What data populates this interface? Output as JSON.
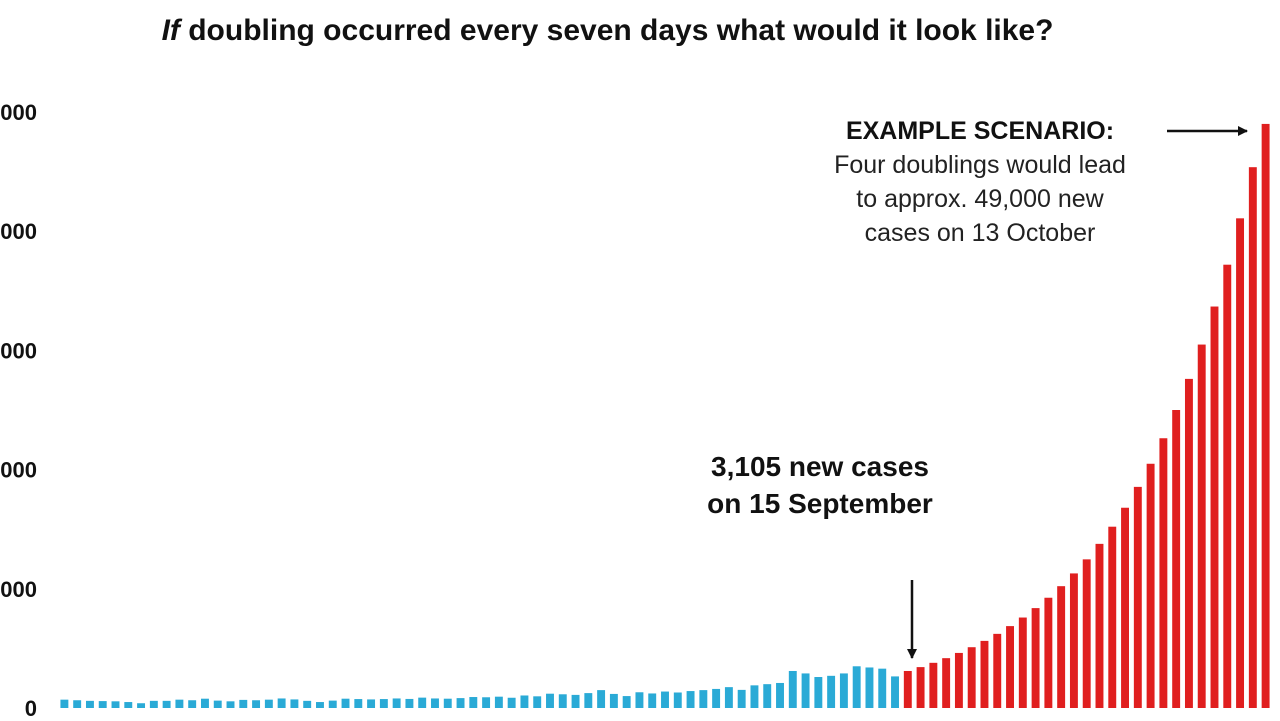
{
  "title": {
    "emphasis": "If",
    "rest": " doubling occurred every seven days what would it look like?"
  },
  "colors": {
    "observed": "#2aaad6",
    "projected": "#e01f1f",
    "text": "#111111"
  },
  "annotations": {
    "current": {
      "line1": "3,105 new cases",
      "line2": "on 15 September"
    },
    "scenario": {
      "heading": "EXAMPLE SCENARIO:",
      "line1": "Four doublings would lead",
      "line2": "to approx. 49,000 new",
      "line3": "cases on 13 October"
    }
  },
  "chart_data": {
    "type": "bar",
    "title": "If doubling occurred every seven days what would it look like?",
    "ylim": [
      0,
      50000
    ],
    "yticks": [
      {
        "value": 0,
        "label": "0"
      },
      {
        "value": 10000,
        "label": "000"
      },
      {
        "value": 20000,
        "label": "000"
      },
      {
        "value": 30000,
        "label": "000"
      },
      {
        "value": 40000,
        "label": "000"
      },
      {
        "value": 50000,
        "label": "000"
      }
    ],
    "grid": false,
    "legend": "none",
    "series": [
      {
        "color": "#2aaad6",
        "values": [
          700,
          650,
          600,
          580,
          560,
          500,
          400,
          600,
          600,
          700,
          650,
          780,
          620,
          560,
          680,
          650,
          700,
          800,
          720,
          600,
          500,
          620,
          780,
          750,
          720,
          750,
          800,
          760,
          870,
          800,
          780,
          830,
          920,
          900,
          950,
          860,
          1050,
          980,
          1200,
          1150,
          1100,
          1250,
          1500,
          1180,
          1000,
          1320,
          1220,
          1380,
          1300,
          1420,
          1500,
          1600,
          1750,
          1520,
          1900,
          2000,
          2100,
          3105,
          2900,
          2600,
          2700,
          2900,
          3500,
          3400,
          3300,
          2650
        ]
      },
      {
        "color": "#e01f1f",
        "values": [
          3105,
          3430,
          3790,
          4180,
          4620,
          5100,
          5630,
          6220,
          6870,
          7590,
          8380,
          9250,
          10220,
          11290,
          12470,
          13770,
          15210,
          16800,
          18550,
          20490,
          22630,
          25000,
          27610,
          30490,
          33680,
          37190,
          41080,
          45370,
          49000
        ]
      }
    ]
  }
}
